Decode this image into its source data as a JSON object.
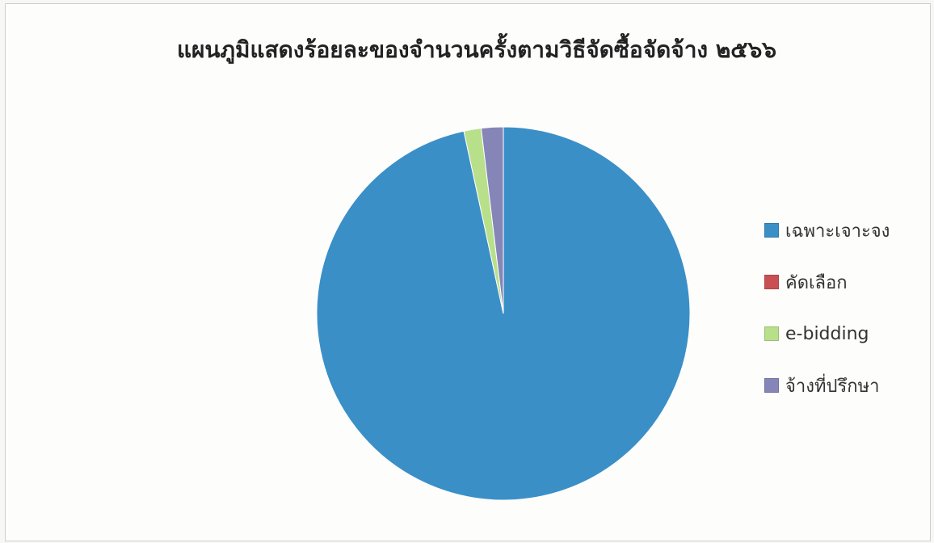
{
  "chart_data": {
    "type": "pie",
    "title": "แผนภูมิแสดงร้อยละของจำนวนครั้งตามวิธีจัดซื้อจัดจ้าง ๒๕๖๖",
    "categories": [
      "เฉพาะเจาะจง",
      "คัดเลือก",
      "e-bidding",
      "จ้างที่ปรึกษา"
    ],
    "values": [
      96.6,
      0,
      1.5,
      1.9
    ],
    "unit": "%",
    "colors": [
      "#3b8fc7",
      "#c94f55",
      "#b8e08a",
      "#8585b8"
    ],
    "legend_position": "right"
  }
}
